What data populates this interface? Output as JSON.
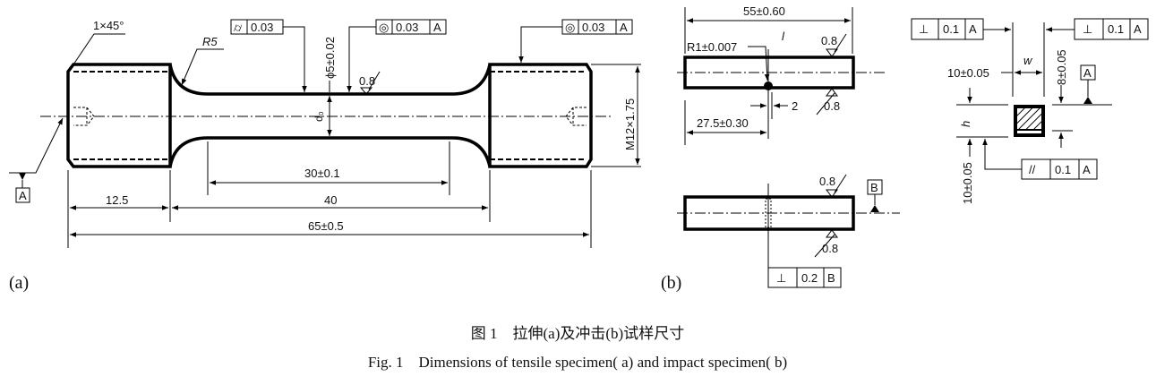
{
  "figure_a": {
    "label": "(a)",
    "chamfer": "1×45°",
    "fillet_radius": "R5",
    "frame_left": {
      "symbol": "⌭",
      "value": "0.03"
    },
    "frame_mid": {
      "symbol": "◎",
      "value": "0.03",
      "datum": "A"
    },
    "frame_right": {
      "symbol": "◎",
      "value": "0.03",
      "datum": "A"
    },
    "diameter": "ϕ5±0.02",
    "d0": "d₀",
    "roughness": "0.8",
    "gauge_length": "30±0.1",
    "shoulder_length": "12.5",
    "parallel_length": "40",
    "total_length": "65±0.5",
    "thread": "M12×1.75",
    "datum": "A"
  },
  "figure_b": {
    "label": "(b)",
    "length": "55±0.60",
    "notch_radius": "R1±0.007",
    "l": "l",
    "roughness": "0.8",
    "notch_width": "2",
    "notch_position": "27.5±0.30",
    "datum_b": "B",
    "frame_bottom": {
      "symbol": "⊥",
      "value": "0.2",
      "datum": "B"
    },
    "frame_top_left": {
      "symbol": "⊥",
      "value": "0.1",
      "datum": "A"
    },
    "frame_top_right": {
      "symbol": "⊥",
      "value": "0.1",
      "datum": "A"
    },
    "frame_parallel": {
      "symbol": "//",
      "value": "0.1",
      "datum": "A"
    },
    "width_label": "w",
    "width_dim": "10±0.05",
    "height_label": "h",
    "height_dim": "10±0.05",
    "notch_depth": "8±0.05",
    "datum_a": "A"
  },
  "caption": {
    "zh": "图 1　拉伸(a)及冲击(b)试样尺寸",
    "en": "Fig. 1　Dimensions of tensile specimen( a)  and impact specimen( b)"
  }
}
